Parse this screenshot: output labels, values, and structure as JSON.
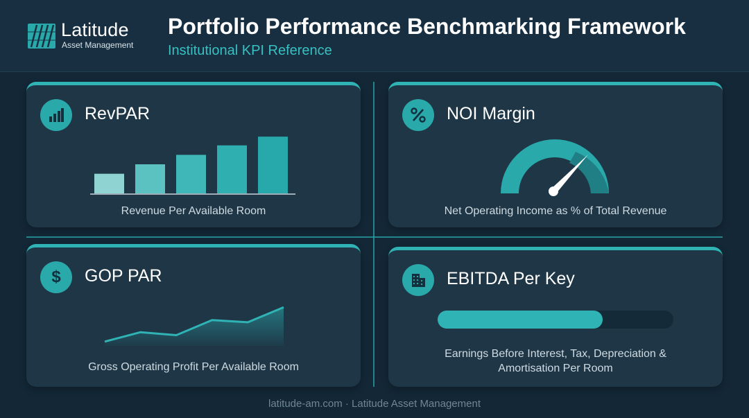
{
  "brand": {
    "name": "Latitude",
    "tagline": "Asset Management"
  },
  "header": {
    "title": "Portfolio Performance Benchmarking Framework",
    "subtitle": "Institutional KPI Reference"
  },
  "colors": {
    "accent": "#2fb3b5",
    "background": "#132736",
    "card": "#1e3646"
  },
  "cards": [
    {
      "title": "RevPAR",
      "icon": "bar-chart-icon",
      "description": "Revenue Per Available Room",
      "graphic": {
        "type": "bar",
        "values": [
          27,
          40,
          53,
          66,
          78
        ]
      }
    },
    {
      "title": "NOI Margin",
      "icon": "percent-icon",
      "description": "Net Operating Income as % of Total Revenue",
      "graphic": {
        "type": "gauge",
        "level": 0.75
      }
    },
    {
      "title": "GOP PAR",
      "icon": "dollar-icon",
      "description": "Gross Operating Profit Per Available Room",
      "graphic": {
        "type": "area",
        "values": [
          10,
          32,
          25,
          60,
          55,
          90
        ]
      }
    },
    {
      "title": "EBITDA Per Key",
      "icon": "building-icon",
      "description_line1": "Earnings Before Interest, Tax, Depreciation &",
      "description_line2": "Amortisation Per Room",
      "graphic": {
        "type": "progress",
        "level": 0.7
      }
    }
  ],
  "footer": {
    "text": "latitude-am.com · Latitude Asset Management"
  }
}
